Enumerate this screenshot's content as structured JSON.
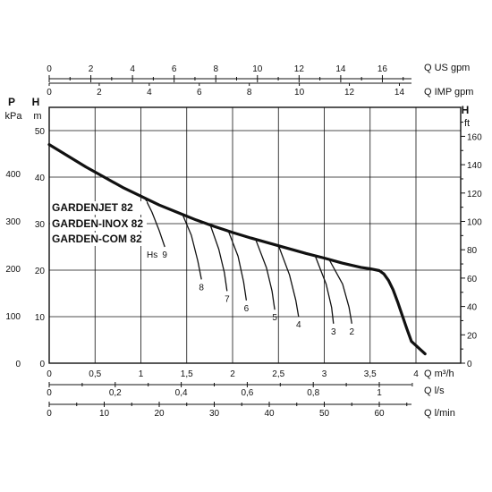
{
  "chart_data": {
    "type": "line",
    "models": [
      "GARDENJET 82",
      "GARDEN-INOX 82",
      "GARDEN-COM 82"
    ],
    "axes": {
      "q_us_gpm": {
        "label": "Q US gpm",
        "range": [
          0,
          17.6
        ],
        "ticks": [
          "0",
          "2",
          "4",
          "6",
          "8",
          "10",
          "12",
          "14",
          "16"
        ]
      },
      "q_imp_gpm": {
        "label": "Q IMP gpm",
        "range": [
          0,
          14.67
        ],
        "ticks": [
          "0",
          "2",
          "4",
          "6",
          "8",
          "10",
          "12",
          "14"
        ]
      },
      "q_m3h": {
        "label": "Q m³/h",
        "range": [
          0,
          4.0
        ],
        "ticks": [
          "0",
          "0,5",
          "1",
          "1,5",
          "2",
          "2,5",
          "3",
          "3,5",
          "4"
        ]
      },
      "q_ls": {
        "label": "Q l/s",
        "range": [
          0,
          1.11
        ],
        "ticks": [
          "0",
          "0,2",
          "0,4",
          "0,6",
          "0,8",
          "1"
        ]
      },
      "q_lmin": {
        "label": "Q l/min",
        "range": [
          0,
          66.7
        ],
        "ticks": [
          "0",
          "10",
          "20",
          "30",
          "40",
          "50",
          "60"
        ]
      },
      "h_m": {
        "label": "H m",
        "range": [
          0,
          50
        ],
        "ticks": [
          "0",
          "10",
          "20",
          "30",
          "40",
          "50"
        ]
      },
      "p_kpa": {
        "label": "P kPa",
        "range": [
          0,
          490
        ],
        "ticks": [
          "0",
          "100",
          "200",
          "300",
          "400"
        ]
      },
      "h_ft": {
        "label": "H ft",
        "range": [
          0,
          164
        ],
        "ticks": [
          "0",
          "20",
          "40",
          "60",
          "80",
          "100",
          "120",
          "140",
          "160"
        ]
      }
    },
    "xlabel": "Q m³/h",
    "ylabel": "H m",
    "xlim": [
      0,
      4.0
    ],
    "ylim": [
      0,
      50
    ],
    "grid": true,
    "series": [
      {
        "name": "",
        "x": [
          0,
          0.2,
          0.4,
          0.6,
          0.8,
          1.0,
          1.2,
          1.4,
          1.6,
          1.8,
          2.0,
          2.2,
          2.4,
          2.6,
          2.8,
          3.0,
          3.2,
          3.4,
          3.5,
          3.6,
          3.65,
          3.7,
          3.75,
          3.8,
          3.85,
          3.9,
          3.95,
          4.1
        ],
        "y": [
          47.0,
          44.6,
          42.2,
          40.0,
          37.8,
          35.9,
          34.0,
          32.4,
          30.8,
          29.4,
          28.1,
          26.9,
          25.8,
          24.7,
          23.6,
          22.6,
          21.5,
          20.6,
          20.3,
          19.9,
          19.2,
          17.8,
          15.8,
          13.2,
          10.3,
          7.4,
          4.7,
          2.0
        ]
      }
    ],
    "suction_lift_curves": {
      "label": "Hs",
      "curves": [
        {
          "label": "9",
          "x": [
            1.04,
            1.12,
            1.2,
            1.26
          ],
          "y": [
            35.7,
            32.5,
            28.5,
            25.0
          ]
        },
        {
          "label": "8",
          "x": [
            1.45,
            1.55,
            1.62,
            1.66
          ],
          "y": [
            32.2,
            27.5,
            22.0,
            18.0
          ]
        },
        {
          "label": "7",
          "x": [
            1.75,
            1.85,
            1.91,
            1.94
          ],
          "y": [
            30.1,
            24.5,
            19.5,
            15.5
          ]
        },
        {
          "label": "6",
          "x": [
            1.95,
            2.06,
            2.12,
            2.15
          ],
          "y": [
            28.6,
            23.0,
            17.5,
            13.5
          ]
        },
        {
          "label": "5",
          "x": [
            2.25,
            2.37,
            2.43,
            2.46
          ],
          "y": [
            26.7,
            20.5,
            15.5,
            11.5
          ]
        },
        {
          "label": "4",
          "x": [
            2.5,
            2.62,
            2.69,
            2.72
          ],
          "y": [
            25.3,
            19.0,
            13.5,
            10.0
          ]
        },
        {
          "label": "3",
          "x": [
            2.9,
            3.02,
            3.08,
            3.1
          ],
          "y": [
            23.1,
            17.0,
            12.0,
            8.5
          ]
        },
        {
          "label": "2",
          "x": [
            3.05,
            3.2,
            3.27,
            3.3
          ],
          "y": [
            22.4,
            17.0,
            12.0,
            8.5
          ]
        }
      ]
    }
  }
}
